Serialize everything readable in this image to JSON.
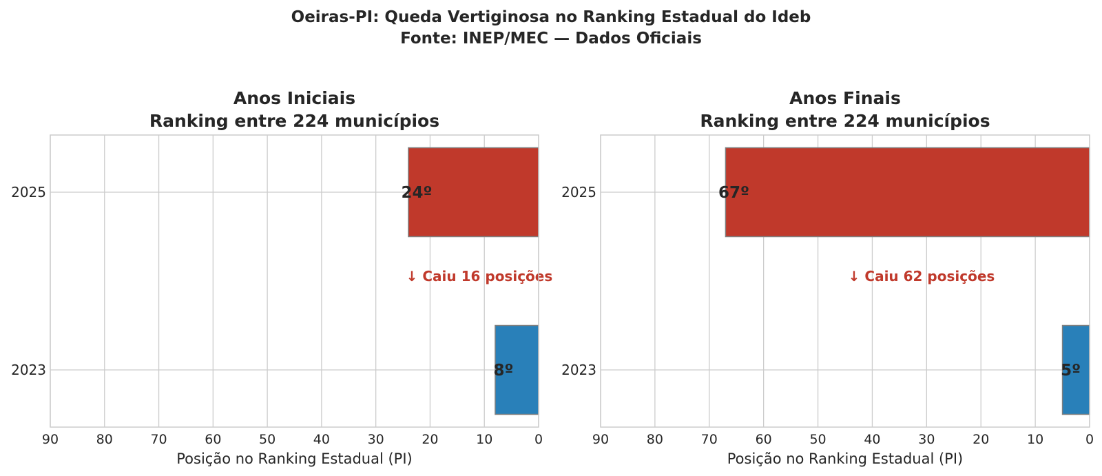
{
  "figure": {
    "title_line1": "Oeiras-PI: Queda Vertiginosa no Ranking Estadual do Ideb",
    "title_line2": "Fonte: INEP/MEC — Dados Oficiais"
  },
  "colors": {
    "bar_2025": "#c0392b",
    "bar_2023": "#2980b9",
    "annotation": "#c0392b",
    "grid": "#cccccc",
    "bar_edge": "#7f7f7f",
    "text": "#262626"
  },
  "chart_data": [
    {
      "type": "bar",
      "orientation": "horizontal",
      "title_line1": "Anos Iniciais",
      "title_line2": "Ranking entre 224 municípios",
      "xlabel": "Posição no Ranking Estadual (PI)",
      "ylabel": "",
      "x_inverted": true,
      "xlim": [
        90,
        0
      ],
      "xticks": [
        90,
        80,
        70,
        60,
        50,
        40,
        30,
        20,
        10,
        0
      ],
      "categories": [
        "2025",
        "2023"
      ],
      "values": [
        24,
        8
      ],
      "bar_labels": [
        "24º",
        "8º"
      ],
      "bar_colors": [
        "#c0392b",
        "#2980b9"
      ],
      "annotation": "↓ Caiu 16 posições",
      "grid": true,
      "legend": "none"
    },
    {
      "type": "bar",
      "orientation": "horizontal",
      "title_line1": "Anos Finais",
      "title_line2": "Ranking entre 224 municípios",
      "xlabel": "Posição no Ranking Estadual (PI)",
      "ylabel": "",
      "x_inverted": true,
      "xlim": [
        90,
        0
      ],
      "xticks": [
        90,
        80,
        70,
        60,
        50,
        40,
        30,
        20,
        10,
        0
      ],
      "categories": [
        "2025",
        "2023"
      ],
      "values": [
        67,
        5
      ],
      "bar_labels": [
        "67º",
        "5º"
      ],
      "bar_colors": [
        "#c0392b",
        "#2980b9"
      ],
      "annotation": "↓ Caiu 62 posições",
      "grid": true,
      "legend": "none"
    }
  ]
}
